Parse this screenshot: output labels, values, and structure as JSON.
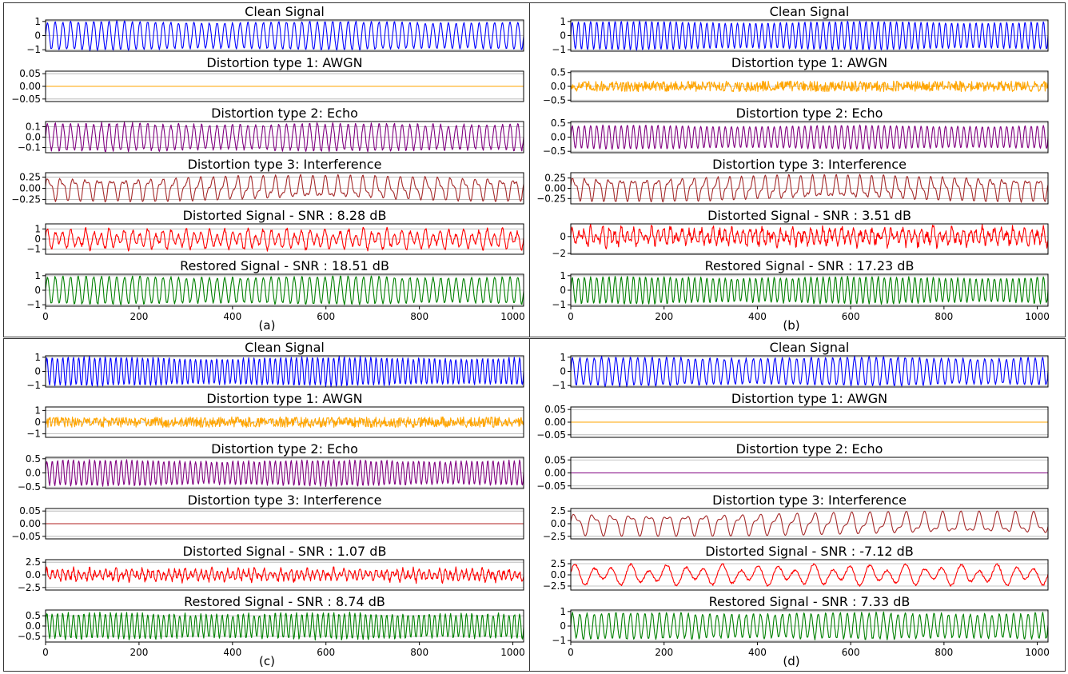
{
  "chart_data": [
    {
      "panel_label": "(a)",
      "type": "line",
      "x_range": [
        0,
        1023
      ],
      "x_ticks": [
        0,
        200,
        400,
        600,
        800,
        1000
      ],
      "subplots": [
        {
          "title": "Clean Signal",
          "color": "#0000ff",
          "ylim": [
            -1.1,
            1.1
          ],
          "y_ticks": [
            -1,
            0,
            1
          ],
          "y_tick_labels": [
            "−1",
            "0",
            "1"
          ],
          "waveform": {
            "kind": "sine",
            "amplitude": 1.0,
            "cycles": 62,
            "noise": 0.04
          }
        },
        {
          "title": "Distortion type 1: AWGN",
          "color": "#ffa500",
          "ylim": [
            -0.06,
            0.06
          ],
          "y_ticks": [
            -0.05,
            0,
            0.05
          ],
          "y_tick_labels": [
            "−0.05",
            "0.00",
            "0.05"
          ],
          "waveform": {
            "kind": "flat",
            "amplitude": 0.0,
            "cycles": 0,
            "noise": 0
          }
        },
        {
          "title": "Distortion type 2: Echo",
          "color": "#800080",
          "ylim": [
            -0.15,
            0.15
          ],
          "y_ticks": [
            -0.1,
            0,
            0.1
          ],
          "y_tick_labels": [
            "−0.1",
            "0.0",
            "0.1"
          ],
          "waveform": {
            "kind": "sine",
            "amplitude": 0.13,
            "cycles": 62,
            "noise": 0.01
          }
        },
        {
          "title": "Distortion type 3: Interference",
          "color": "#a52a2a",
          "ylim": [
            -0.35,
            0.35
          ],
          "y_ticks": [
            -0.25,
            0,
            0.25
          ],
          "y_tick_labels": [
            "−0.25",
            "0.00",
            "0.25"
          ],
          "waveform": {
            "kind": "interference",
            "amplitude": 0.3,
            "cycles": 38,
            "noise": 0.01
          }
        },
        {
          "title": "Distorted Signal - SNR : 8.28 dB",
          "color": "#ff0000",
          "ylim": [
            -1.5,
            1.5
          ],
          "y_ticks": [
            -1,
            0,
            1
          ],
          "y_tick_labels": [
            "−1",
            "0",
            "1"
          ],
          "waveform": {
            "kind": "mix",
            "amplitude": 1.1,
            "cycles": 62,
            "noise": 0.12
          }
        },
        {
          "title": "Restored Signal - SNR : 18.51 dB",
          "color": "#008000",
          "ylim": [
            -1.1,
            1.1
          ],
          "y_ticks": [
            -1,
            0,
            1
          ],
          "y_tick_labels": [
            "−1",
            "0",
            "1"
          ],
          "waveform": {
            "kind": "sine",
            "amplitude": 0.95,
            "cycles": 62,
            "noise": 0.05
          }
        }
      ]
    },
    {
      "panel_label": "(b)",
      "type": "line",
      "x_range": [
        0,
        1023
      ],
      "x_ticks": [
        0,
        200,
        400,
        600,
        800,
        1000
      ],
      "subplots": [
        {
          "title": "Clean Signal",
          "color": "#0000ff",
          "ylim": [
            -1.1,
            1.1
          ],
          "y_ticks": [
            -1,
            0,
            1
          ],
          "y_tick_labels": [
            "−1",
            "0",
            "1"
          ],
          "waveform": {
            "kind": "sine",
            "amplitude": 1.0,
            "cycles": 78,
            "noise": 0.02
          }
        },
        {
          "title": "Distortion type 1: AWGN",
          "color": "#ffa500",
          "ylim": [
            -0.55,
            0.55
          ],
          "y_ticks": [
            -0.5,
            0,
            0.5
          ],
          "y_tick_labels": [
            "−0.5",
            "0.0",
            "0.5"
          ],
          "waveform": {
            "kind": "noise",
            "amplitude": 0.0,
            "cycles": 0,
            "noise": 0.12
          }
        },
        {
          "title": "Distortion type 2: Echo",
          "color": "#800080",
          "ylim": [
            -0.55,
            0.55
          ],
          "y_ticks": [
            -0.5,
            0,
            0.5
          ],
          "y_tick_labels": [
            "−0.5",
            "0.0",
            "0.5"
          ],
          "waveform": {
            "kind": "sine",
            "amplitude": 0.42,
            "cycles": 78,
            "noise": 0.01
          }
        },
        {
          "title": "Distortion type 3: Interference",
          "color": "#a52a2a",
          "ylim": [
            -0.38,
            0.38
          ],
          "y_ticks": [
            -0.25,
            0,
            0.25
          ],
          "y_tick_labels": [
            "−0.25",
            "0.00",
            "0.25"
          ],
          "waveform": {
            "kind": "interference",
            "amplitude": 0.33,
            "cycles": 40,
            "noise": 0.01
          }
        },
        {
          "title": "Distorted Signal - SNR : 3.51 dB",
          "color": "#ff0000",
          "ylim": [
            -2.1,
            1.5
          ],
          "y_ticks": [
            -2,
            0
          ],
          "y_tick_labels": [
            "−2",
            "0"
          ],
          "waveform": {
            "kind": "mix",
            "amplitude": 1.1,
            "cycles": 78,
            "noise": 0.3
          }
        },
        {
          "title": "Restored Signal - SNR : 17.23 dB",
          "color": "#008000",
          "ylim": [
            -1.1,
            1.1
          ],
          "y_ticks": [
            -1,
            0,
            1
          ],
          "y_tick_labels": [
            "−1",
            "0",
            "1"
          ],
          "waveform": {
            "kind": "sine",
            "amplitude": 0.92,
            "cycles": 78,
            "noise": 0.04
          }
        }
      ]
    },
    {
      "panel_label": "(c)",
      "type": "line",
      "x_range": [
        0,
        1023
      ],
      "x_ticks": [
        0,
        200,
        400,
        600,
        800,
        1000
      ],
      "subplots": [
        {
          "title": "Clean Signal",
          "color": "#0000ff",
          "ylim": [
            -1.1,
            1.1
          ],
          "y_ticks": [
            -1,
            0,
            1
          ],
          "y_tick_labels": [
            "−1",
            "0",
            "1"
          ],
          "waveform": {
            "kind": "sine",
            "amplitude": 1.0,
            "cycles": 90,
            "noise": 0.04
          }
        },
        {
          "title": "Distortion type 1: AWGN",
          "color": "#ffa500",
          "ylim": [
            -1.3,
            1.3
          ],
          "y_ticks": [
            -1,
            0,
            1
          ],
          "y_tick_labels": [
            "−1",
            "0",
            "1"
          ],
          "waveform": {
            "kind": "noise",
            "amplitude": 0.0,
            "cycles": 0,
            "noise": 0.28
          }
        },
        {
          "title": "Distortion type 2: Echo",
          "color": "#800080",
          "ylim": [
            -0.55,
            0.55
          ],
          "y_ticks": [
            -0.5,
            0,
            0.5
          ],
          "y_tick_labels": [
            "−0.5",
            "0.0",
            "0.5"
          ],
          "waveform": {
            "kind": "sine",
            "amplitude": 0.45,
            "cycles": 90,
            "noise": 0.02
          }
        },
        {
          "title": "Distortion type 3: Interference",
          "color": "#b22222",
          "ylim": [
            -0.06,
            0.06
          ],
          "y_ticks": [
            -0.05,
            0,
            0.05
          ],
          "y_tick_labels": [
            "−0.05",
            "0.00",
            "0.05"
          ],
          "waveform": {
            "kind": "flat",
            "amplitude": 0.0,
            "cycles": 0,
            "noise": 0
          }
        },
        {
          "title": "Distorted Signal - SNR : 1.07 dB",
          "color": "#ff0000",
          "ylim": [
            -3.0,
            3.0
          ],
          "y_ticks": [
            -2.5,
            0,
            2.5
          ],
          "y_tick_labels": [
            "−2.5",
            "0.0",
            "2.5"
          ],
          "waveform": {
            "kind": "mix",
            "amplitude": 1.3,
            "cycles": 90,
            "noise": 0.32
          }
        },
        {
          "title": "Restored Signal - SNR : 8.74 dB",
          "color": "#008000",
          "ylim": [
            -0.78,
            0.78
          ],
          "y_ticks": [
            -0.5,
            0,
            0.5
          ],
          "y_tick_labels": [
            "−0.5",
            "0.0",
            "0.5"
          ],
          "waveform": {
            "kind": "sine",
            "amplitude": 0.62,
            "cycles": 90,
            "noise": 0.05
          }
        }
      ]
    },
    {
      "panel_label": "(d)",
      "type": "line",
      "x_range": [
        0,
        1023
      ],
      "x_ticks": [
        0,
        200,
        400,
        600,
        800,
        1000
      ],
      "subplots": [
        {
          "title": "Clean Signal",
          "color": "#0000ff",
          "ylim": [
            -1.1,
            1.1
          ],
          "y_ticks": [
            -1,
            0,
            1
          ],
          "y_tick_labels": [
            "−1",
            "0",
            "1"
          ],
          "waveform": {
            "kind": "sine",
            "amplitude": 1.0,
            "cycles": 66,
            "noise": 0.05
          }
        },
        {
          "title": "Distortion type 1: AWGN",
          "color": "#ffa500",
          "ylim": [
            -0.06,
            0.06
          ],
          "y_ticks": [
            -0.05,
            0,
            0.05
          ],
          "y_tick_labels": [
            "−0.05",
            "0.00",
            "0.05"
          ],
          "waveform": {
            "kind": "flat",
            "amplitude": 0.0,
            "cycles": 0,
            "noise": 0
          }
        },
        {
          "title": "Distortion type 2: Echo",
          "color": "#800080",
          "ylim": [
            -0.06,
            0.06
          ],
          "y_ticks": [
            -0.05,
            0,
            0.05
          ],
          "y_tick_labels": [
            "−0.05",
            "0.00",
            "0.05"
          ],
          "waveform": {
            "kind": "flat",
            "amplitude": 0.0,
            "cycles": 0,
            "noise": 0
          }
        },
        {
          "title": "Distortion type 3: Interference",
          "color": "#a52a2a",
          "ylim": [
            -3.0,
            3.0
          ],
          "y_ticks": [
            -2.5,
            0,
            2.5
          ],
          "y_tick_labels": [
            "−2.5",
            "0.0",
            "2.5"
          ],
          "waveform": {
            "kind": "interference",
            "amplitude": 2.5,
            "cycles": 26,
            "noise": 0.02
          }
        },
        {
          "title": "Distorted Signal - SNR : -7.12 dB",
          "color": "#ff0000",
          "ylim": [
            -3.4,
            3.4
          ],
          "y_ticks": [
            -2.5,
            0,
            2.5
          ],
          "y_tick_labels": [
            "−2.5",
            "0.0",
            "2.5"
          ],
          "waveform": {
            "kind": "mix",
            "amplitude": 2.6,
            "cycles": 26,
            "noise": 0.15
          }
        },
        {
          "title": "Restored Signal - SNR : 7.33 dB",
          "color": "#008000",
          "ylim": [
            -1.1,
            1.1
          ],
          "y_ticks": [
            -1,
            0,
            1
          ],
          "y_tick_labels": [
            "−1",
            "0",
            "1"
          ],
          "waveform": {
            "kind": "sine",
            "amplitude": 0.9,
            "cycles": 66,
            "noise": 0.06
          }
        }
      ]
    }
  ]
}
